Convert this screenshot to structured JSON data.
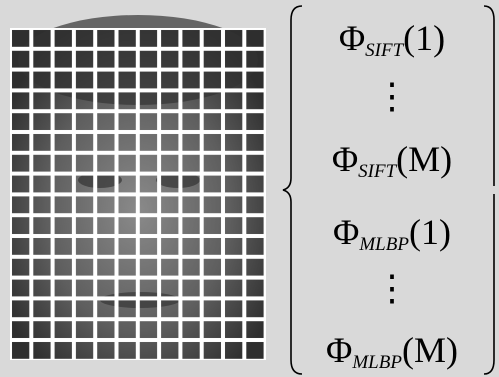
{
  "vector": {
    "entries": [
      {
        "symbol": "Φ",
        "subscript": "SIFT",
        "argument": "(1)"
      },
      {
        "dots": "⋮"
      },
      {
        "symbol": "Φ",
        "subscript": "SIFT",
        "argument": "(M)"
      },
      {
        "symbol": "Φ",
        "subscript": "MLBP",
        "argument": "(1)"
      },
      {
        "dots": "⋮"
      },
      {
        "symbol": "Φ",
        "subscript": "MLBP",
        "argument": "(M)"
      }
    ]
  }
}
